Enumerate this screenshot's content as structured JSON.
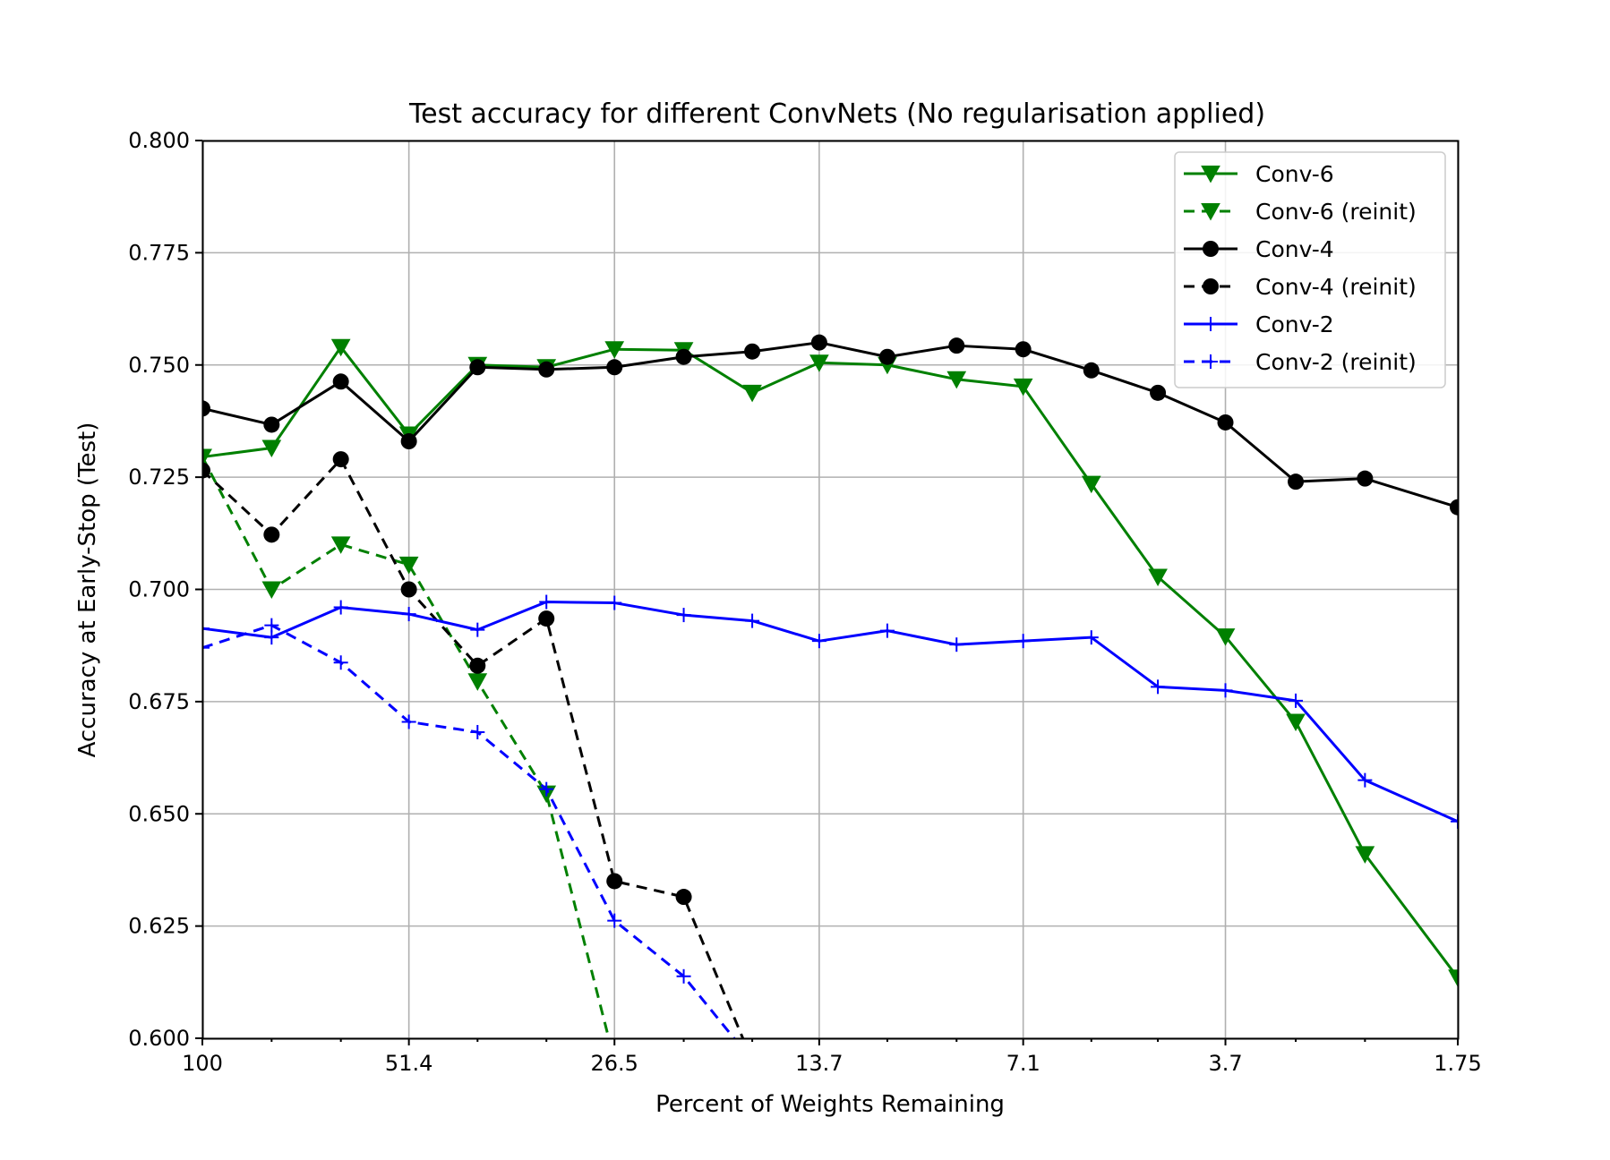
{
  "chart_data": {
    "type": "line",
    "title": "Test accuracy for different ConvNets (No regularisation applied)",
    "xlabel": "Percent of Weights Remaining",
    "ylabel": "Accuracy at Early-Stop (Test)",
    "x_scale": "log-reversed",
    "x_ticks": [
      "100",
      "51.4",
      "26.5",
      "13.7",
      "7.1",
      "3.7",
      "1.75"
    ],
    "x_tick_values": [
      100,
      51.4,
      26.5,
      13.7,
      7.1,
      3.7,
      1.75
    ],
    "x": [
      100,
      80,
      64,
      51.4,
      41.2,
      33,
      26.5,
      21.2,
      17,
      13.7,
      11,
      8.8,
      7.1,
      5.7,
      4.6,
      3.7,
      2.95,
      2.36,
      1.75
    ],
    "ylim": [
      0.6,
      0.8
    ],
    "y_ticks": [
      "0.600",
      "0.625",
      "0.650",
      "0.675",
      "0.700",
      "0.725",
      "0.750",
      "0.775",
      "0.800"
    ],
    "grid": true,
    "legend_position": "top-right",
    "series": [
      {
        "name": "Conv-6",
        "color": "#008000",
        "linestyle": "solid",
        "marker": "triangle-down",
        "values": [
          0.7295,
          0.7315,
          0.754,
          0.7345,
          0.75,
          0.7495,
          0.7535,
          0.7533,
          0.7438,
          0.7505,
          0.75,
          0.7468,
          0.7452,
          0.7235,
          0.7028,
          0.6895,
          0.6705,
          0.641,
          0.6135
        ]
      },
      {
        "name": "Conv-6 (reinit)",
        "color": "#008000",
        "linestyle": "dashed",
        "marker": "triangle-down",
        "values": [
          0.7295,
          0.7,
          0.71,
          0.7055,
          0.6795,
          0.6545,
          0.595,
          null,
          null,
          null,
          null,
          null,
          null,
          null,
          null,
          null,
          null,
          null,
          null
        ]
      },
      {
        "name": "Conv-4",
        "color": "#000000",
        "linestyle": "solid",
        "marker": "circle",
        "values": [
          0.7403,
          0.7367,
          0.7463,
          0.733,
          0.7495,
          0.749,
          0.7495,
          0.7518,
          0.753,
          0.755,
          0.7518,
          0.7543,
          0.7535,
          0.7488,
          0.7438,
          0.7372,
          0.724,
          0.7247,
          0.7183
        ]
      },
      {
        "name": "Conv-4 (reinit)",
        "color": "#000000",
        "linestyle": "dashed",
        "marker": "circle",
        "values": [
          0.7265,
          0.7122,
          0.729,
          0.7,
          0.683,
          0.6935,
          0.635,
          0.6315,
          0.595,
          null,
          null,
          null,
          null,
          null,
          null,
          null,
          null,
          null,
          null
        ]
      },
      {
        "name": "Conv-2",
        "color": "#0000ff",
        "linestyle": "solid",
        "marker": "plus",
        "values": [
          0.6913,
          0.6893,
          0.696,
          0.6945,
          0.691,
          0.6972,
          0.697,
          0.6943,
          0.693,
          0.6885,
          0.6908,
          0.6877,
          0.6885,
          0.6893,
          0.6783,
          0.6775,
          0.6752,
          0.6575,
          0.6483
        ]
      },
      {
        "name": "Conv-2 (reinit)",
        "color": "#0000ff",
        "linestyle": "dashed",
        "marker": "plus",
        "values": [
          0.687,
          0.692,
          0.6837,
          0.6705,
          0.6682,
          0.6555,
          0.6262,
          0.6138,
          0.595,
          null,
          null,
          null,
          null,
          null,
          null,
          null,
          null,
          null,
          null
        ]
      }
    ]
  }
}
